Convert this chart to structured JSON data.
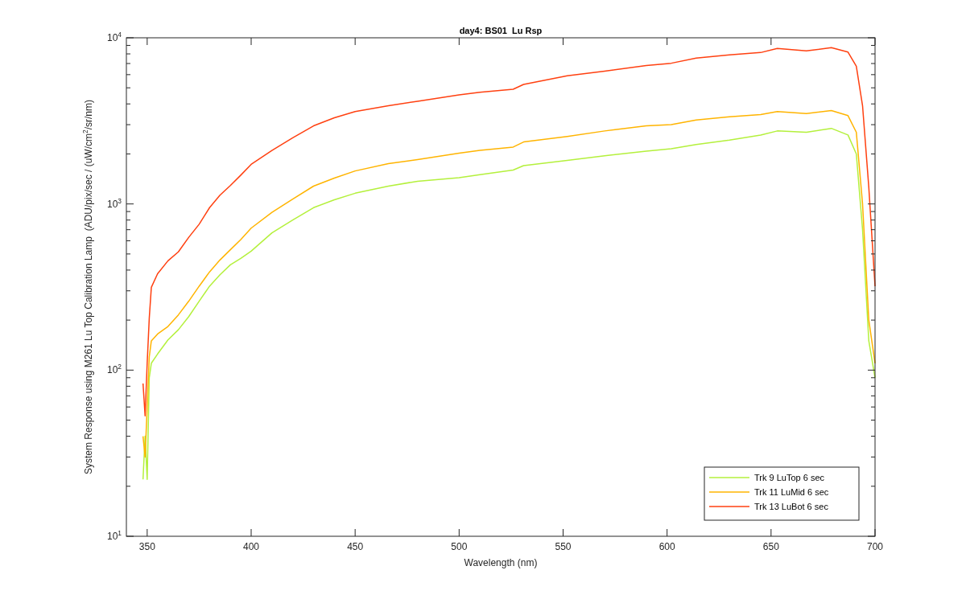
{
  "chart_data": {
    "type": "line",
    "title": "day4: BS01  Lu Rsp",
    "xlabel": "Wavelength (nm)",
    "ylabel": "System Response using M261 Lu Top Calibration Lamp  (ADU/pix/sec / (uW/cm$^{2}$/sr/nm)",
    "x": [
      348,
      349,
      350,
      351,
      352,
      355,
      360,
      365,
      370,
      375,
      380,
      385,
      390,
      395,
      400,
      410,
      420,
      430,
      440,
      450,
      466,
      480,
      500,
      510,
      526,
      531,
      552,
      570,
      590,
      602,
      614,
      630,
      645,
      653,
      667,
      679,
      687,
      691,
      694,
      697,
      700
    ],
    "series": [
      {
        "name": "Trk 9 LuTop 6 sec",
        "color": "#b4f03c",
        "values": [
          22,
          40,
          22,
          90,
          110,
          125,
          152,
          175,
          210,
          260,
          320,
          375,
          430,
          470,
          520,
          670,
          800,
          950,
          1060,
          1160,
          1280,
          1370,
          1440,
          1500,
          1600,
          1700,
          1830,
          1950,
          2080,
          2150,
          2280,
          2420,
          2600,
          2750,
          2700,
          2850,
          2600,
          2000,
          700,
          150,
          90
        ]
      },
      {
        "name": "Trk 11 LuMid 6 sec",
        "color": "#ffb400",
        "values": [
          40,
          30,
          60,
          120,
          150,
          165,
          183,
          215,
          260,
          320,
          390,
          460,
          530,
          610,
          715,
          890,
          1070,
          1280,
          1430,
          1580,
          1750,
          1850,
          2020,
          2100,
          2200,
          2360,
          2550,
          2750,
          2950,
          3000,
          3200,
          3350,
          3450,
          3600,
          3500,
          3650,
          3400,
          2700,
          1000,
          200,
          110
        ]
      },
      {
        "name": "Trk 13 LuBot 6 sec",
        "color": "#ff4010",
        "values": [
          83,
          53,
          110,
          205,
          315,
          380,
          455,
          515,
          630,
          755,
          950,
          1130,
          1290,
          1490,
          1730,
          2100,
          2500,
          2950,
          3300,
          3600,
          3900,
          4150,
          4530,
          4700,
          4900,
          5240,
          5900,
          6300,
          6800,
          7030,
          7540,
          7900,
          8150,
          8630,
          8340,
          8730,
          8200,
          6740,
          3900,
          1260,
          320
        ]
      }
    ],
    "xlim": [
      340,
      700
    ],
    "xticks": [
      350,
      400,
      450,
      500,
      550,
      600,
      650,
      700
    ],
    "ylim": [
      10,
      10000
    ],
    "log": true,
    "yticks": [
      {
        "value": 10,
        "label": "10$^{1}$"
      },
      {
        "value": 20,
        "label": null
      },
      {
        "value": 30,
        "label": null
      },
      {
        "value": 40,
        "label": null
      },
      {
        "value": 50,
        "label": null
      },
      {
        "value": 60,
        "label": null
      },
      {
        "value": 70,
        "label": null
      },
      {
        "value": 80,
        "label": null
      },
      {
        "value": 90,
        "label": null
      },
      {
        "value": 100,
        "label": "10$^{2}$"
      },
      {
        "value": 200,
        "label": null
      },
      {
        "value": 300,
        "label": null
      },
      {
        "value": 400,
        "label": null
      },
      {
        "value": 500,
        "label": null
      },
      {
        "value": 600,
        "label": null
      },
      {
        "value": 700,
        "label": null
      },
      {
        "value": 800,
        "label": null
      },
      {
        "value": 900,
        "label": null
      },
      {
        "value": 1000,
        "label": "10$^{3}$"
      },
      {
        "value": 2000,
        "label": null
      },
      {
        "value": 3000,
        "label": null
      },
      {
        "value": 4000,
        "label": null
      },
      {
        "value": 5000,
        "label": null
      },
      {
        "value": 6000,
        "label": null
      },
      {
        "value": 7000,
        "label": null
      },
      {
        "value": 8000,
        "label": null
      },
      {
        "value": 9000,
        "label": null
      },
      {
        "value": 10000,
        "label": "10$^{4}$"
      }
    ],
    "grid": false,
    "legend": "bottom right",
    "marker": "none",
    "line_style": "solid"
  }
}
